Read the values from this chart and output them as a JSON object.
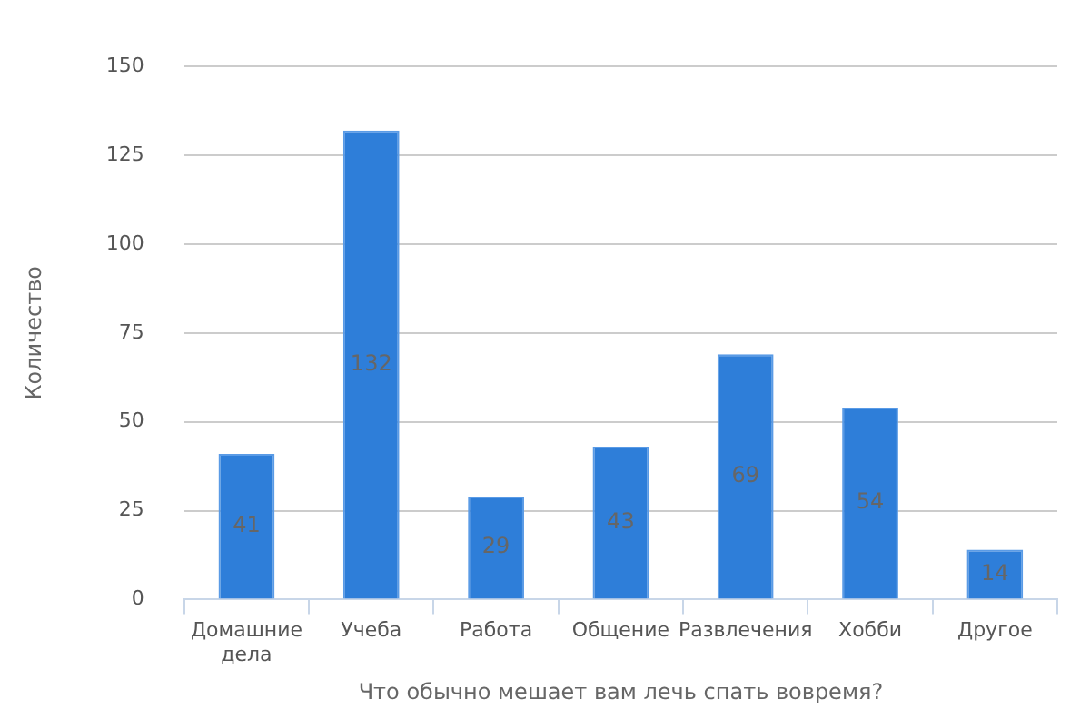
{
  "chart_data": {
    "type": "bar",
    "xlabel": "Что обычно мешает вам лечь спать вовремя?",
    "ylabel": "Количество",
    "categories": [
      "Домашние дела",
      "Учеба",
      "Работа",
      "Общение",
      "Развлечения",
      "Хобби",
      "Другое"
    ],
    "values": [
      41,
      132,
      29,
      43,
      69,
      54,
      14
    ],
    "color": "#2e7ed9",
    "ylim": [
      0,
      150
    ],
    "yticks": [
      0,
      25,
      50,
      75,
      100,
      125,
      150
    ],
    "grid": "y",
    "data_labels": true
  }
}
